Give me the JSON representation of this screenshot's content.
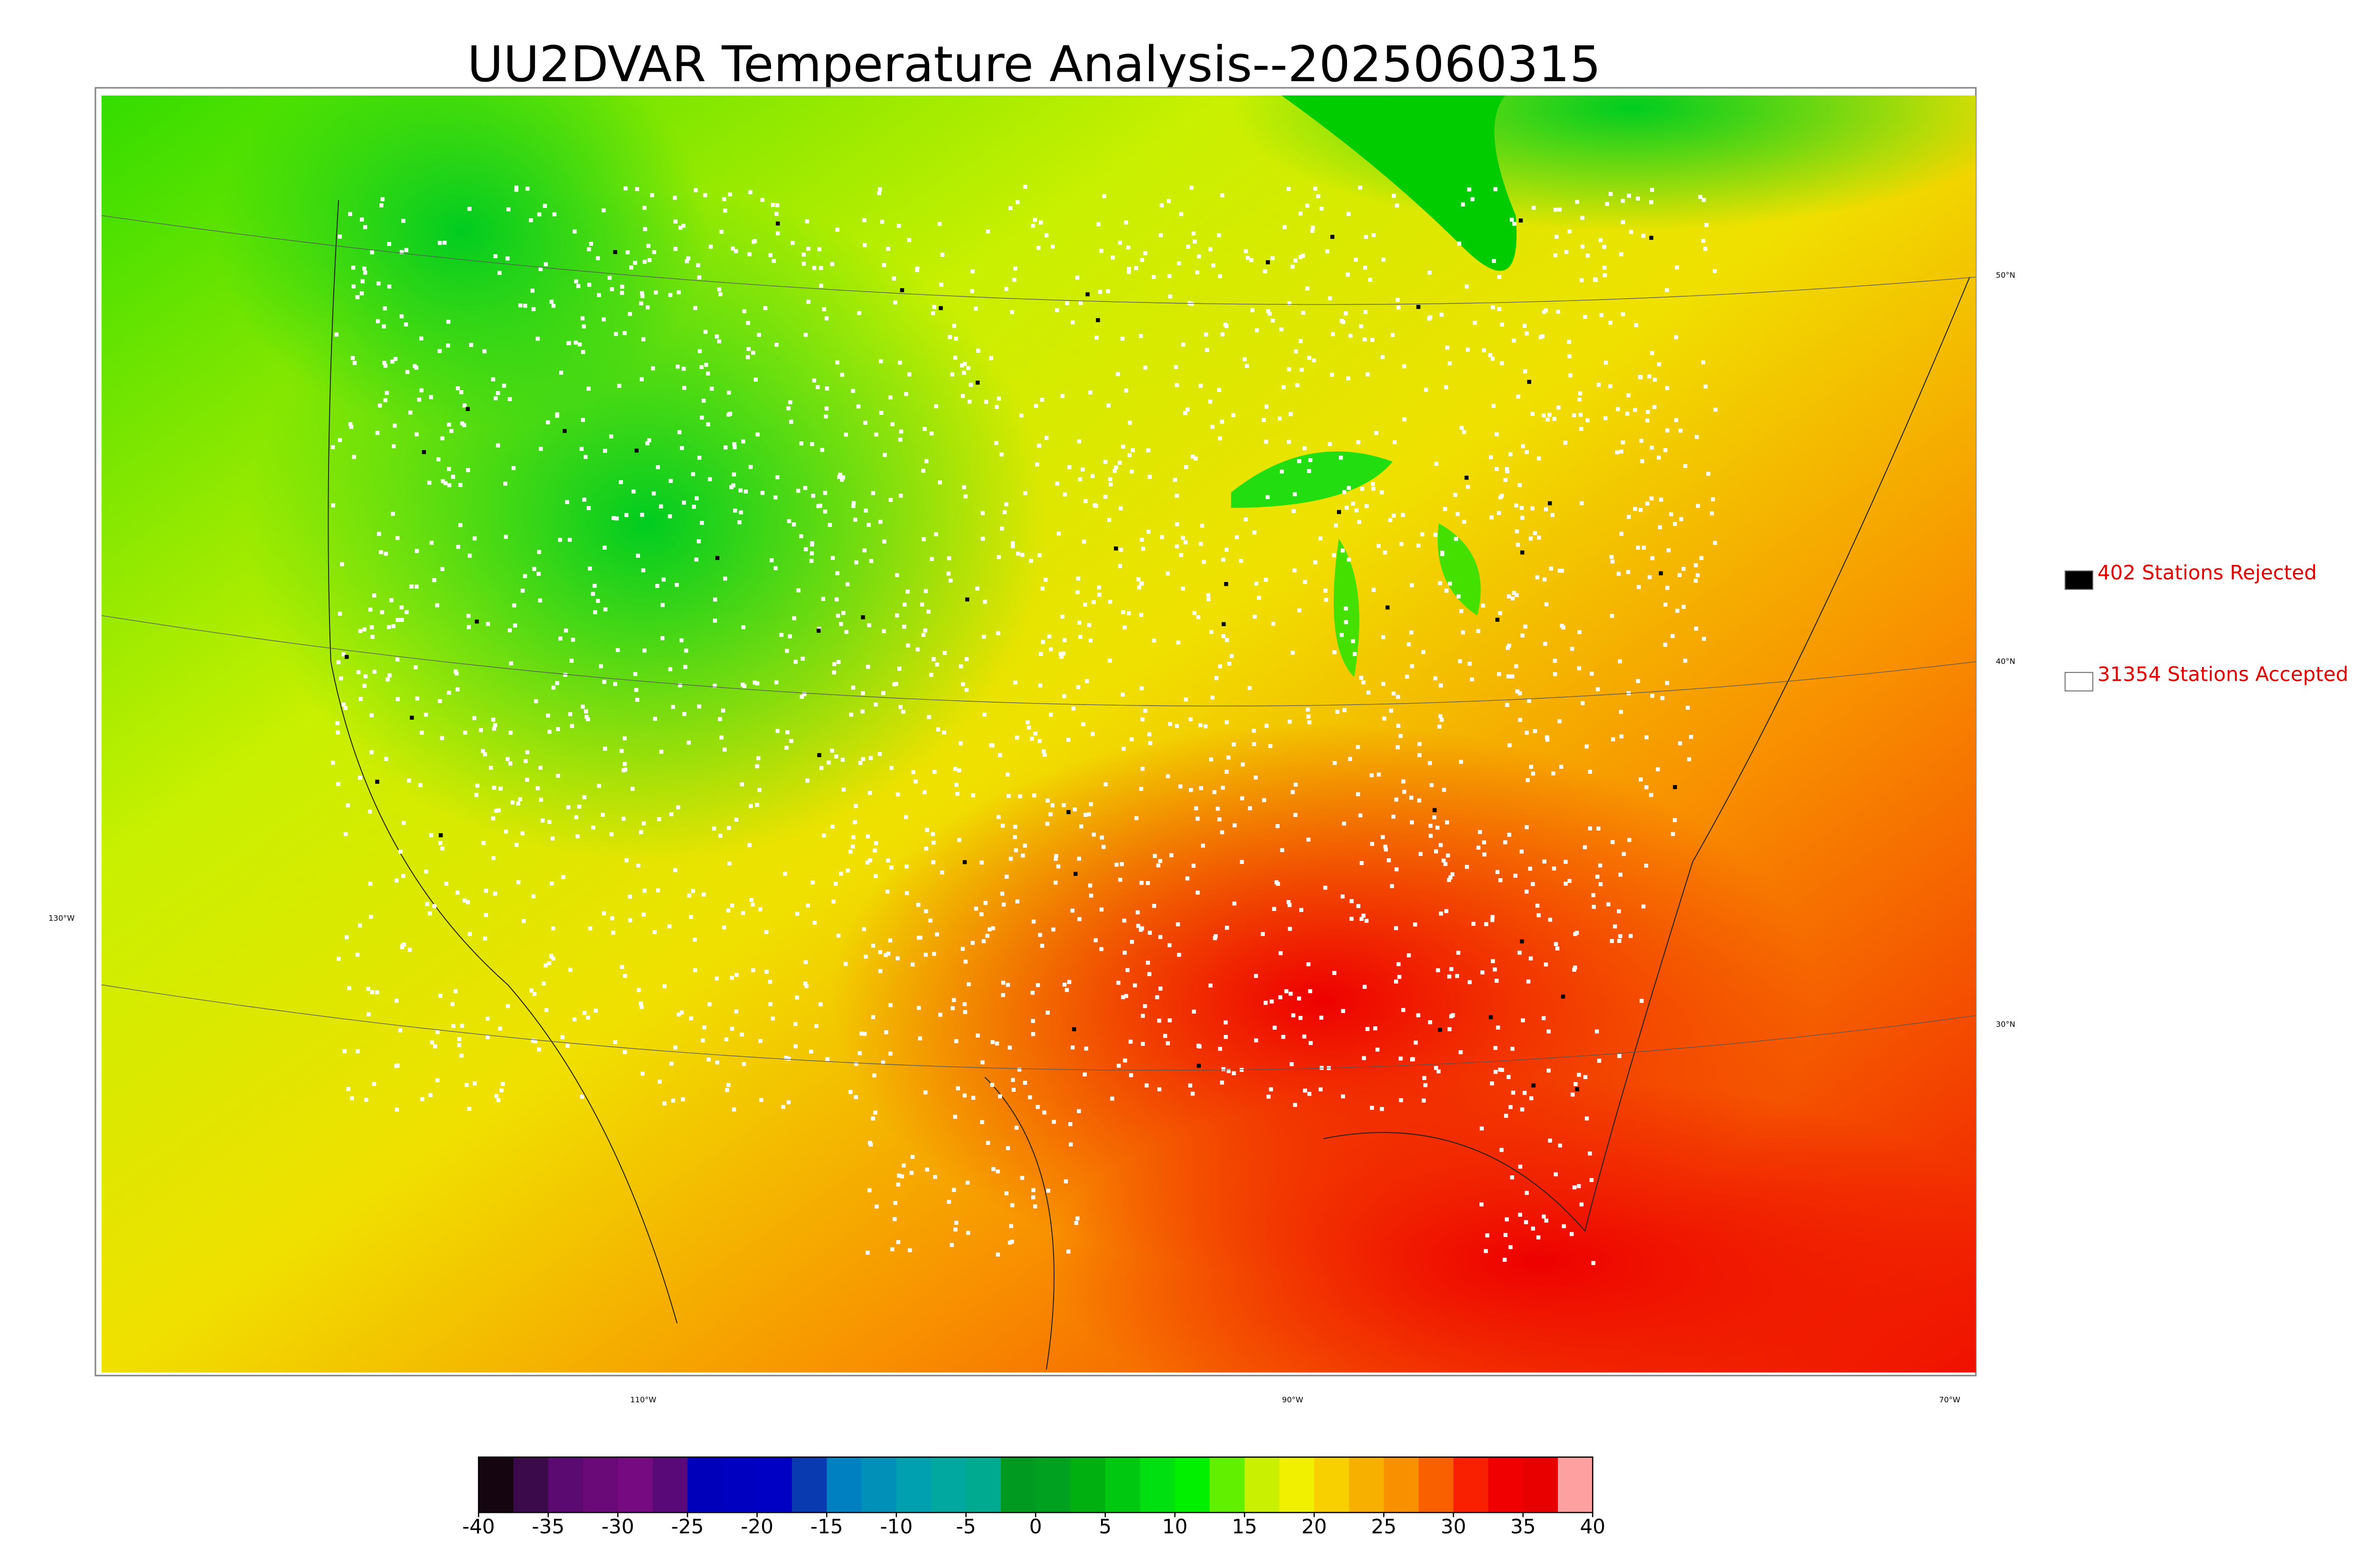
{
  "title": "UU2DVAR Temperature Analysis--2025060315",
  "legend": [
    {
      "label": "402 Stations Rejected",
      "color": "#000000"
    },
    {
      "label": "31354 Stations Accepted",
      "color": "#ffffff"
    }
  ],
  "latitude_labels": [
    "50°N",
    "40°N",
    "30°N"
  ],
  "longitude_labels": [
    "130°W",
    "110°W",
    "90°W",
    "70°W"
  ],
  "colorbar": {
    "lim": [
      -40,
      40
    ],
    "ticks": [
      -40,
      -35,
      -30,
      -25,
      -20,
      -15,
      -10,
      -5,
      0,
      5,
      10,
      15,
      20,
      25,
      30,
      35,
      40
    ],
    "colors": [
      "#150510",
      "#3a0a4a",
      "#5a0a70",
      "#6a0a78",
      "#760a80",
      "#5a0a78",
      "#0000bb",
      "#0000c0",
      "#0000c4",
      "#0a3ab0",
      "#0080c0",
      "#0090b8",
      "#00a0b0",
      "#00a8a0",
      "#00aa90",
      "#009a20",
      "#00a020",
      "#00b010",
      "#00c810",
      "#00e010",
      "#00f000",
      "#60f000",
      "#c8f000",
      "#f0f000",
      "#f8d000",
      "#f8b000",
      "#f89000",
      "#f86000",
      "#f82000",
      "#f00000",
      "#e80000",
      "#ffa0a0"
    ]
  }
}
